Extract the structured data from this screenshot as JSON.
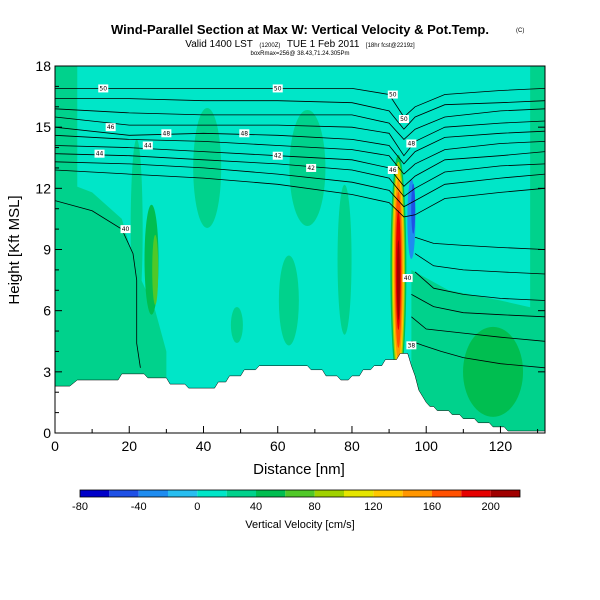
{
  "chart_data": {
    "type": "heatmap",
    "title": "Wind-Parallel Section at Max W: Vertical Velocity & Pot.Temp.",
    "title_mark": "(C)",
    "subtitle_main": "Valid 1400 LST",
    "subtitle_paren": "(1200Z)",
    "subtitle_date": "TUE 1 Feb 2011",
    "subtitle_tail": "[18hr fcst@2219z]",
    "subtitle_small": "boxRmax=256@ 38.43,71.24.305Pm",
    "xlabel": "Distance [nm]",
    "ylabel": "Height [Kft MSL]",
    "xlim": [
      0,
      132
    ],
    "ylim": [
      0,
      18
    ],
    "xticks": [
      "0",
      "20",
      "40",
      "60",
      "80",
      "100",
      "120"
    ],
    "yticks": [
      "0",
      "3",
      "6",
      "9",
      "12",
      "15",
      "18"
    ],
    "colorbar": {
      "label": "Vertical Velocity [cm/s]",
      "ticks": [
        "-80",
        "-40",
        "0",
        "40",
        "80",
        "120",
        "160",
        "200"
      ],
      "levels": [
        -80,
        -60,
        -40,
        -20,
        0,
        20,
        40,
        60,
        80,
        100,
        120,
        140,
        160,
        180,
        200,
        220
      ],
      "colors": [
        "#0000c8",
        "#1e50e6",
        "#1e8cf0",
        "#28bef0",
        "#00e6c8",
        "#00d28c",
        "#00be50",
        "#50c828",
        "#a0d200",
        "#e6e600",
        "#ffc800",
        "#ff9600",
        "#ff5000",
        "#e60000",
        "#a00000"
      ]
    },
    "contour_labels": [
      "50",
      "50",
      "50",
      "50",
      "48",
      "48",
      "48",
      "46",
      "46",
      "44",
      "44",
      "42",
      "42",
      "40",
      "40",
      "38"
    ],
    "terrain": [
      [
        0,
        2.3
      ],
      [
        4,
        2.3
      ],
      [
        6,
        2.6
      ],
      [
        17,
        2.6
      ],
      [
        18,
        2.9
      ],
      [
        24,
        2.9
      ],
      [
        25,
        2.7
      ],
      [
        30,
        2.7
      ],
      [
        31,
        2.4
      ],
      [
        35,
        2.4
      ],
      [
        36,
        2.2
      ],
      [
        43,
        2.2
      ],
      [
        44,
        2.5
      ],
      [
        46,
        2.5
      ],
      [
        47,
        2.8
      ],
      [
        50,
        2.8
      ],
      [
        51,
        3.1
      ],
      [
        54,
        3.1
      ],
      [
        55,
        3.3
      ],
      [
        68,
        3.3
      ],
      [
        69,
        3.1
      ],
      [
        72,
        3.1
      ],
      [
        73,
        2.8
      ],
      [
        76,
        2.8
      ],
      [
        77,
        2.6
      ],
      [
        79,
        2.6
      ],
      [
        80,
        2.8
      ],
      [
        82,
        2.8
      ],
      [
        83,
        3.1
      ],
      [
        85,
        3.1
      ],
      [
        86,
        3.3
      ],
      [
        88,
        3.3
      ],
      [
        89,
        3.6
      ],
      [
        92,
        3.6
      ],
      [
        93,
        3.9
      ],
      [
        95,
        3.9
      ],
      [
        96,
        3.3
      ],
      [
        97,
        2.8
      ],
      [
        98,
        2.1
      ],
      [
        99,
        1.8
      ],
      [
        100,
        1.5
      ],
      [
        101,
        1.3
      ],
      [
        102,
        1.3
      ],
      [
        103,
        1.1
      ],
      [
        106,
        1.1
      ],
      [
        107,
        0.9
      ],
      [
        109,
        0.9
      ],
      [
        110,
        0.7
      ],
      [
        113,
        0.7
      ],
      [
        114,
        0.5
      ],
      [
        117,
        0.5
      ],
      [
        118,
        0.3
      ],
      [
        121,
        0.3
      ],
      [
        122,
        0.1
      ],
      [
        132,
        0.1
      ]
    ],
    "theta_lines": [
      [
        [
          0,
          16.9
        ],
        [
          20,
          16.9
        ],
        [
          40,
          16.9
        ],
        [
          60,
          16.9
        ],
        [
          80,
          16.9
        ],
        [
          90,
          16.6
        ],
        [
          94,
          15.5
        ],
        [
          97,
          16.0
        ],
        [
          105,
          16.6
        ],
        [
          120,
          16.8
        ],
        [
          132,
          16.9
        ]
      ],
      [
        [
          0,
          16.4
        ],
        [
          20,
          16.4
        ],
        [
          40,
          16.3
        ],
        [
          60,
          16.3
        ],
        [
          80,
          16.2
        ],
        [
          90,
          15.8
        ],
        [
          94,
          14.9
        ],
        [
          97,
          15.5
        ],
        [
          105,
          16.1
        ],
        [
          120,
          16.2
        ],
        [
          132,
          16.3
        ]
      ],
      [
        [
          0,
          15.9
        ],
        [
          20,
          15.7
        ],
        [
          40,
          15.6
        ],
        [
          60,
          15.6
        ],
        [
          80,
          15.6
        ],
        [
          90,
          15.2
        ],
        [
          94,
          14.4
        ],
        [
          97,
          14.9
        ],
        [
          105,
          15.5
        ],
        [
          120,
          15.8
        ],
        [
          132,
          15.9
        ]
      ],
      [
        [
          0,
          15.5
        ],
        [
          20,
          15.1
        ],
        [
          40,
          15.1
        ],
        [
          60,
          15.1
        ],
        [
          80,
          15.0
        ],
        [
          90,
          14.7
        ],
        [
          94,
          13.6
        ],
        [
          97,
          14.3
        ],
        [
          105,
          15.0
        ],
        [
          120,
          15.2
        ],
        [
          132,
          15.3
        ]
      ],
      [
        [
          0,
          15.0
        ],
        [
          20,
          14.6
        ],
        [
          40,
          14.7
        ],
        [
          60,
          14.6
        ],
        [
          80,
          14.4
        ],
        [
          90,
          14.1
        ],
        [
          94,
          13.2
        ],
        [
          97,
          13.8
        ],
        [
          105,
          14.5
        ],
        [
          120,
          14.7
        ],
        [
          132,
          14.8
        ]
      ],
      [
        [
          0,
          14.6
        ],
        [
          20,
          14.4
        ],
        [
          40,
          14.3
        ],
        [
          60,
          14.1
        ],
        [
          80,
          13.9
        ],
        [
          90,
          13.6
        ],
        [
          94,
          12.7
        ],
        [
          97,
          13.2
        ],
        [
          105,
          13.9
        ],
        [
          120,
          14.2
        ],
        [
          132,
          14.3
        ]
      ],
      [
        [
          0,
          14.1
        ],
        [
          20,
          14.0
        ],
        [
          40,
          13.8
        ],
        [
          60,
          13.6
        ],
        [
          80,
          13.4
        ],
        [
          90,
          13.0
        ],
        [
          94,
          12.1
        ],
        [
          97,
          12.6
        ],
        [
          105,
          13.4
        ],
        [
          120,
          13.6
        ],
        [
          132,
          13.8
        ]
      ],
      [
        [
          0,
          13.7
        ],
        [
          20,
          13.6
        ],
        [
          40,
          13.4
        ],
        [
          60,
          13.2
        ],
        [
          80,
          12.9
        ],
        [
          90,
          12.5
        ],
        [
          94,
          11.6
        ],
        [
          97,
          12.0
        ],
        [
          105,
          12.8
        ],
        [
          120,
          13.1
        ],
        [
          132,
          13.2
        ]
      ],
      [
        [
          0,
          13.3
        ],
        [
          20,
          13.2
        ],
        [
          40,
          13.0
        ],
        [
          60,
          12.7
        ],
        [
          80,
          12.3
        ],
        [
          90,
          11.9
        ],
        [
          94,
          11.1
        ],
        [
          97,
          11.4
        ],
        [
          105,
          12.2
        ],
        [
          120,
          12.5
        ],
        [
          132,
          12.7
        ]
      ],
      [
        [
          0,
          12.9
        ],
        [
          20,
          12.7
        ],
        [
          40,
          12.5
        ],
        [
          60,
          12.2
        ],
        [
          80,
          11.7
        ],
        [
          90,
          11.3
        ],
        [
          94,
          10.6
        ],
        [
          97,
          10.7
        ],
        [
          105,
          11.5
        ],
        [
          120,
          11.8
        ],
        [
          132,
          12.0
        ]
      ],
      [
        [
          0,
          11.4
        ],
        [
          10,
          10.9
        ],
        [
          18,
          10.0
        ],
        [
          21,
          8.8
        ],
        [
          22,
          7.5
        ],
        [
          22,
          6.0
        ],
        [
          22,
          4.4
        ],
        [
          23,
          3.2
        ]
      ],
      [
        [
          97,
          9.6
        ],
        [
          102,
          9.3
        ],
        [
          110,
          9.2
        ],
        [
          120,
          9.1
        ],
        [
          132,
          9.0
        ]
      ],
      [
        [
          97,
          8.8
        ],
        [
          102,
          8.2
        ],
        [
          110,
          8.0
        ],
        [
          120,
          7.9
        ],
        [
          132,
          7.8
        ]
      ],
      [
        [
          97,
          7.9
        ],
        [
          102,
          7.1
        ],
        [
          110,
          6.8
        ],
        [
          120,
          6.6
        ],
        [
          132,
          6.5
        ]
      ],
      [
        [
          96,
          6.8
        ],
        [
          102,
          6.2
        ],
        [
          110,
          5.9
        ],
        [
          120,
          5.8
        ],
        [
          132,
          5.7
        ]
      ],
      [
        [
          96,
          5.7
        ],
        [
          100,
          5.1
        ],
        [
          110,
          4.9
        ],
        [
          120,
          4.7
        ],
        [
          132,
          4.5
        ]
      ],
      [
        [
          96,
          4.5
        ],
        [
          99,
          4.3
        ],
        [
          104,
          4.0
        ],
        [
          110,
          3.7
        ],
        [
          120,
          3.4
        ],
        [
          132,
          3.2
        ]
      ]
    ]
  }
}
